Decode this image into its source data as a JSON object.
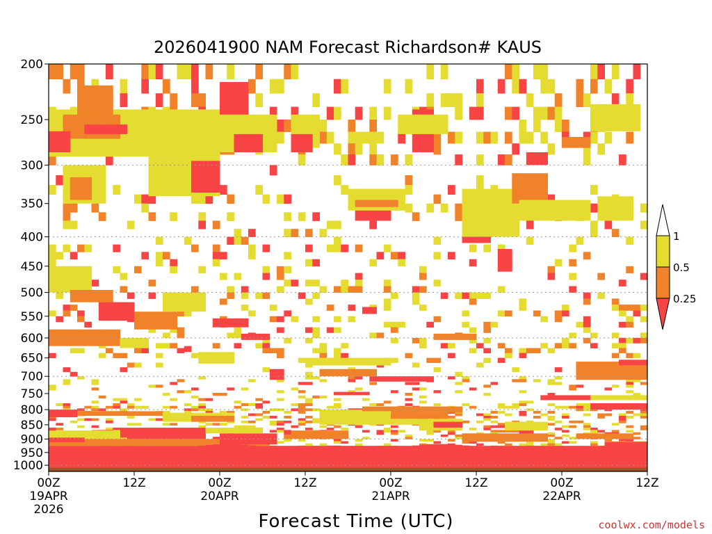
{
  "chart_data": {
    "type": "heatmap",
    "title": "2026041900 NAM Forecast Richardson# KAUS",
    "xlabel": "Forecast Time (UTC)",
    "ylabel": "",
    "credit": "coolwx.com/models",
    "x_range_hours": [
      0,
      84
    ],
    "x_ticks": [
      {
        "hour": 0,
        "label": "00Z",
        "date": "19APR",
        "year": "2026"
      },
      {
        "hour": 12,
        "label": "12Z"
      },
      {
        "hour": 24,
        "label": "00Z",
        "date": "20APR"
      },
      {
        "hour": 36,
        "label": "12Z"
      },
      {
        "hour": 48,
        "label": "00Z",
        "date": "21APR"
      },
      {
        "hour": 60,
        "label": "12Z"
      },
      {
        "hour": 72,
        "label": "00Z",
        "date": "22APR"
      },
      {
        "hour": 84,
        "label": "12Z"
      }
    ],
    "y_range_hpa": [
      200,
      1025
    ],
    "y_ticks": [
      200,
      250,
      300,
      350,
      400,
      450,
      500,
      550,
      600,
      650,
      700,
      750,
      800,
      850,
      900,
      950,
      1000
    ],
    "gridlines_hpa": [
      300,
      400,
      500,
      600,
      700,
      800,
      900,
      1000
    ],
    "colorbar": {
      "labels": [
        "1",
        "0.5",
        "0.25"
      ],
      "colors": {
        "lt_0.25": "#f84444",
        "0.25_0.5": "#f0822a",
        "0.5_1": "#e4dc30",
        "gt_1": "#ffffff"
      }
    },
    "ground_color": "#a0522d",
    "features": [
      {
        "region": "near-surface 900-1000 hPa",
        "ri_class": "lt_0.25",
        "hours": [
          0,
          84
        ]
      },
      {
        "region": "800-880 hPa",
        "ri_class": "mixed",
        "hours": [
          0,
          84
        ]
      },
      {
        "region": "upper 200-300 hPa",
        "ri_class": "mixed",
        "hours": [
          0,
          84
        ]
      }
    ],
    "bands": [
      {
        "cls": "lt_0.25",
        "t0": 0,
        "t1": 84,
        "p0": 925,
        "p1": 1000
      },
      {
        "cls": "0.25_0.5",
        "t0": 0,
        "t1": 30,
        "p0": 900,
        "p1": 925
      },
      {
        "cls": "lt_0.25",
        "t0": 10,
        "t1": 22,
        "p0": 860,
        "p1": 895
      },
      {
        "cls": "0.5_1",
        "t0": 0,
        "t1": 10,
        "p0": 870,
        "p1": 900
      },
      {
        "cls": "lt_0.25",
        "t0": 0,
        "t1": 4,
        "p0": 800,
        "p1": 825
      },
      {
        "cls": "0.25_0.5",
        "t0": 4,
        "t1": 16,
        "p0": 805,
        "p1": 820
      },
      {
        "cls": "0.5_1",
        "t0": 16,
        "t1": 26,
        "p0": 810,
        "p1": 840
      },
      {
        "cls": "0.25_0.5",
        "t0": 20,
        "t1": 26,
        "p0": 820,
        "p1": 840
      },
      {
        "cls": "lt_0.25",
        "t0": 24,
        "t1": 32,
        "p0": 880,
        "p1": 920
      },
      {
        "cls": "0.25_0.5",
        "t0": 34,
        "t1": 42,
        "p0": 870,
        "p1": 900
      },
      {
        "cls": "0.5_1",
        "t0": 38,
        "t1": 52,
        "p0": 800,
        "p1": 850
      },
      {
        "cls": "0.25_0.5",
        "t0": 44,
        "t1": 58,
        "p0": 790,
        "p1": 810
      },
      {
        "cls": "0.5_1",
        "t0": 52,
        "t1": 58,
        "p0": 830,
        "p1": 870
      },
      {
        "cls": "0.25_0.5",
        "t0": 58,
        "t1": 70,
        "p0": 880,
        "p1": 910
      },
      {
        "cls": "0.5_1",
        "t0": 64,
        "t1": 70,
        "p0": 840,
        "p1": 870
      },
      {
        "cls": "lt_0.25",
        "t0": 69,
        "t1": 76,
        "p0": 755,
        "p1": 770
      },
      {
        "cls": "lt_0.25",
        "t0": 76,
        "t1": 84,
        "p0": 780,
        "p1": 800
      },
      {
        "cls": "0.5_1",
        "t0": 76,
        "t1": 84,
        "p0": 755,
        "p1": 770
      },
      {
        "cls": "lt_0.25",
        "t0": 78,
        "t1": 84,
        "p0": 910,
        "p1": 930
      },
      {
        "cls": "0.25_0.5",
        "t0": 74,
        "t1": 82,
        "p0": 880,
        "p1": 900
      },
      {
        "cls": "lt_0.25",
        "t0": 45,
        "t1": 54,
        "p0": 700,
        "p1": 715
      },
      {
        "cls": "0.25_0.5",
        "t0": 38,
        "t1": 46,
        "p0": 680,
        "p1": 700
      },
      {
        "cls": "0.5_1",
        "t0": 36,
        "t1": 48,
        "p0": 650,
        "p1": 670
      },
      {
        "cls": "0.25_0.5",
        "t0": 74,
        "t1": 84,
        "p0": 660,
        "p1": 710
      },
      {
        "cls": "lt_0.25",
        "t0": 80,
        "t1": 84,
        "p0": 655,
        "p1": 670
      },
      {
        "cls": "0.25_0.5",
        "t0": 0,
        "t1": 10,
        "p0": 580,
        "p1": 620
      },
      {
        "cls": "0.5_1",
        "t0": 0,
        "t1": 6,
        "p0": 450,
        "p1": 500
      },
      {
        "cls": "lt_0.25",
        "t0": 7,
        "t1": 12,
        "p0": 520,
        "p1": 560
      },
      {
        "cls": "0.25_0.5",
        "t0": 12,
        "t1": 18,
        "p0": 540,
        "p1": 580
      },
      {
        "cls": "lt_0.25",
        "t0": 23,
        "t1": 28,
        "p0": 555,
        "p1": 575
      },
      {
        "cls": "0.5_1",
        "t0": 16,
        "t1": 22,
        "p0": 500,
        "p1": 540
      },
      {
        "cls": "0.25_0.5",
        "t0": 3,
        "t1": 9,
        "p0": 495,
        "p1": 520
      },
      {
        "cls": "0.5_1",
        "t0": 0,
        "t1": 24,
        "p0": 240,
        "p1": 290
      },
      {
        "cls": "0.25_0.5",
        "t0": 2,
        "t1": 10,
        "p0": 245,
        "p1": 270
      },
      {
        "cls": "lt_0.25",
        "t0": 5,
        "t1": 11,
        "p0": 255,
        "p1": 265
      },
      {
        "cls": "0.25_0.5",
        "t0": 4,
        "t1": 9,
        "p0": 218,
        "p1": 245
      },
      {
        "cls": "lt_0.25",
        "t0": 0,
        "t1": 3,
        "p0": 262,
        "p1": 285
      },
      {
        "cls": "lt_0.25",
        "t0": 24,
        "t1": 28,
        "p0": 215,
        "p1": 265
      },
      {
        "cls": "0.5_1",
        "t0": 24,
        "t1": 32,
        "p0": 245,
        "p1": 285
      },
      {
        "cls": "lt_0.25",
        "t0": 26,
        "t1": 30,
        "p0": 265,
        "p1": 285
      },
      {
        "cls": "0.5_1",
        "t0": 34,
        "t1": 38,
        "p0": 245,
        "p1": 280
      },
      {
        "cls": "lt_0.25",
        "t0": 34,
        "t1": 37,
        "p0": 265,
        "p1": 285
      },
      {
        "cls": "0.5_1",
        "t0": 14,
        "t1": 24,
        "p0": 290,
        "p1": 340
      },
      {
        "cls": "lt_0.25",
        "t0": 20,
        "t1": 24,
        "p0": 295,
        "p1": 335
      },
      {
        "cls": "0.5_1",
        "t0": 2,
        "t1": 8,
        "p0": 300,
        "p1": 350
      },
      {
        "cls": "0.25_0.5",
        "t0": 3,
        "t1": 6,
        "p0": 315,
        "p1": 345
      },
      {
        "cls": "lt_0.25",
        "t0": 43,
        "t1": 48,
        "p0": 355,
        "p1": 375
      },
      {
        "cls": "0.5_1",
        "t0": 42,
        "t1": 50,
        "p0": 330,
        "p1": 360
      },
      {
        "cls": "0.25_0.5",
        "t0": 43,
        "t1": 49,
        "p0": 345,
        "p1": 355
      },
      {
        "cls": "lt_0.25",
        "t0": 51,
        "t1": 54,
        "p0": 240,
        "p1": 285
      },
      {
        "cls": "0.5_1",
        "t0": 49,
        "t1": 56,
        "p0": 245,
        "p1": 265
      },
      {
        "cls": "lt_0.25",
        "t0": 58,
        "t1": 62,
        "p0": 355,
        "p1": 410
      },
      {
        "cls": "0.5_1",
        "t0": 58,
        "t1": 66,
        "p0": 330,
        "p1": 400
      },
      {
        "cls": "lt_0.25",
        "t0": 63,
        "t1": 65,
        "p0": 420,
        "p1": 460
      },
      {
        "cls": "0.25_0.5",
        "t0": 65,
        "t1": 70,
        "p0": 310,
        "p1": 350
      },
      {
        "cls": "lt_0.25",
        "t0": 67,
        "t1": 70,
        "p0": 285,
        "p1": 300
      },
      {
        "cls": "0.5_1",
        "t0": 66,
        "t1": 76,
        "p0": 345,
        "p1": 375
      },
      {
        "cls": "0.25_0.5",
        "t0": 72,
        "t1": 76,
        "p0": 268,
        "p1": 280
      },
      {
        "cls": "0.5_1",
        "t0": 77,
        "t1": 82,
        "p0": 340,
        "p1": 375
      },
      {
        "cls": "0.25_0.5",
        "t0": 77,
        "t1": 82,
        "p0": 240,
        "p1": 260
      },
      {
        "cls": "0.5_1",
        "t0": 76,
        "t1": 83,
        "p0": 235,
        "p1": 262
      },
      {
        "cls": "lt_0.25",
        "t0": 44,
        "t1": 46,
        "p0": 530,
        "p1": 545
      },
      {
        "cls": "lt_0.25",
        "t0": 57,
        "t1": 59,
        "p0": 590,
        "p1": 600
      },
      {
        "cls": "0.25_0.5",
        "t0": 54,
        "t1": 60,
        "p0": 590,
        "p1": 605
      },
      {
        "cls": "0.5_1",
        "t0": 10,
        "t1": 14,
        "p0": 600,
        "p1": 625
      },
      {
        "cls": "lt_0.25",
        "t0": 19,
        "t1": 20,
        "p0": 620,
        "p1": 635
      },
      {
        "cls": "0.5_1",
        "t0": 21,
        "t1": 26,
        "p0": 635,
        "p1": 665
      },
      {
        "cls": "lt_0.25",
        "t0": 27,
        "t1": 31,
        "p0": 590,
        "p1": 605
      },
      {
        "cls": "lt_0.25",
        "t0": 31,
        "t1": 33,
        "p0": 680,
        "p1": 710
      },
      {
        "cls": "lt_0.25",
        "t0": 40,
        "t1": 45,
        "p0": 745,
        "p1": 755
      },
      {
        "cls": "0.5_1",
        "t0": 38,
        "t1": 48,
        "p0": 805,
        "p1": 830
      },
      {
        "cls": "0.25_0.5",
        "t0": 48,
        "t1": 56,
        "p0": 810,
        "p1": 830
      },
      {
        "cls": "lt_0.25",
        "t0": 54,
        "t1": 58,
        "p0": 840,
        "p1": 860
      },
      {
        "cls": "0.5_1",
        "t0": 22,
        "t1": 30,
        "p0": 860,
        "p1": 880
      },
      {
        "cls": "lt_0.25",
        "t0": 12,
        "t1": 22,
        "p0": 880,
        "p1": 900
      },
      {
        "cls": "lt_0.25",
        "t0": 0,
        "t1": 5,
        "p0": 895,
        "p1": 912
      }
    ],
    "scatter_seed": 20260419
  }
}
